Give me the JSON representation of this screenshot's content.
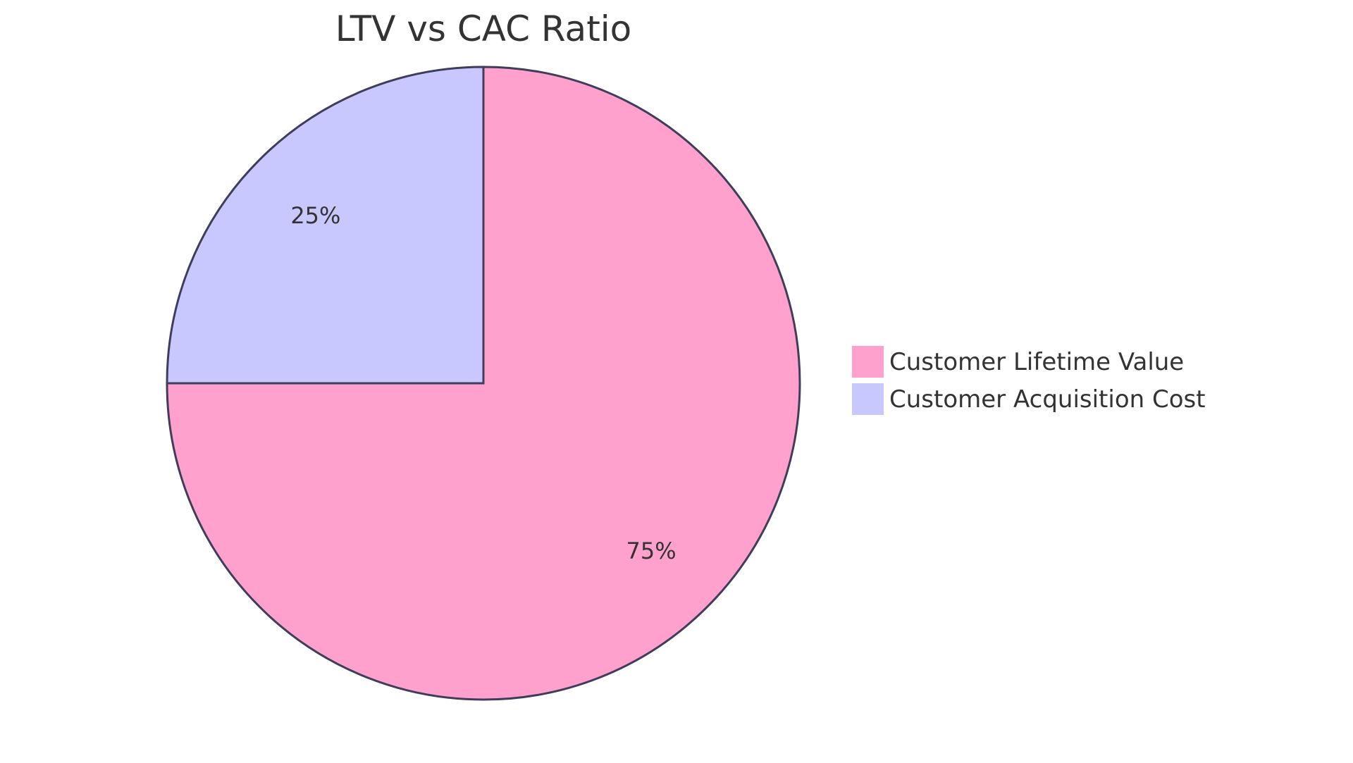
{
  "chart_data": {
    "type": "pie",
    "title": "LTV vs CAC Ratio",
    "slices": [
      {
        "label": "Customer Lifetime Value",
        "value": 75,
        "display": "75%",
        "color": "#FFA1CC"
      },
      {
        "label": "Customer Acquisition Cost",
        "value": 25,
        "display": "25%",
        "color": "#C9C8FE"
      }
    ],
    "legend_position": "right",
    "stroke_color": "#3F3D5C"
  }
}
